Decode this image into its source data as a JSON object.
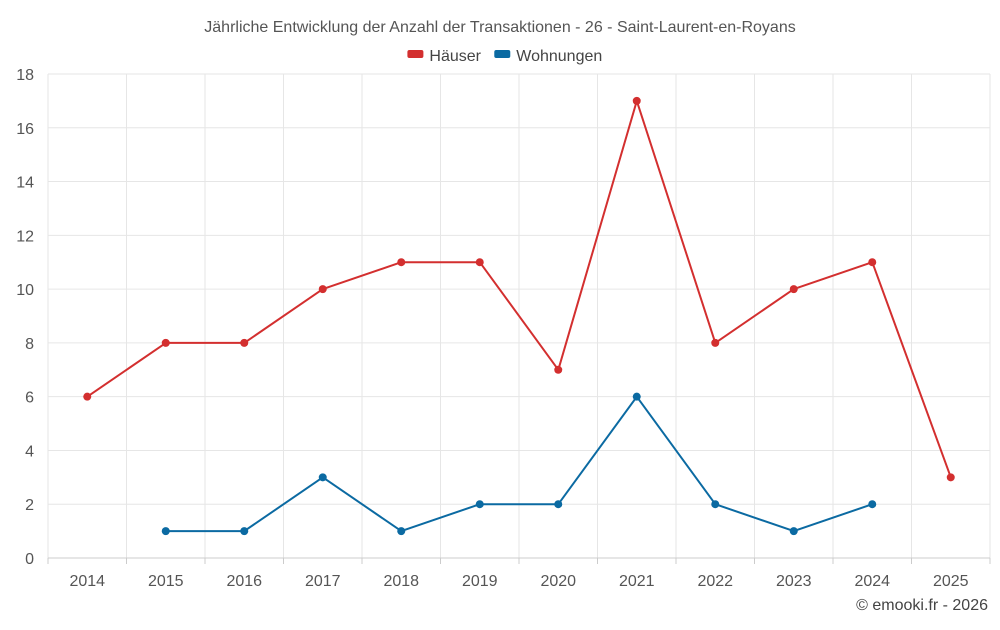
{
  "chart_data": {
    "type": "line",
    "title": "Jährliche Entwicklung der Anzahl der Transaktionen - 26 - Saint-Laurent-en-Royans",
    "categories": [
      "2014",
      "2015",
      "2016",
      "2017",
      "2018",
      "2019",
      "2020",
      "2021",
      "2022",
      "2023",
      "2024",
      "2025"
    ],
    "ylim": [
      0,
      18
    ],
    "yticks": [
      0,
      2,
      4,
      6,
      8,
      10,
      12,
      14,
      16,
      18
    ],
    "grid": true,
    "legend_position": "top-center",
    "series": [
      {
        "name": "Häuser",
        "color": "#d32f2f",
        "values": [
          6,
          8,
          8,
          10,
          11,
          11,
          7,
          17,
          8,
          10,
          11,
          3
        ]
      },
      {
        "name": "Wohnungen",
        "color": "#0b6aa2",
        "values": [
          null,
          1,
          1,
          3,
          1,
          2,
          2,
          6,
          2,
          1,
          2,
          null
        ]
      }
    ],
    "credit": "© emooki.fr - 2026"
  }
}
